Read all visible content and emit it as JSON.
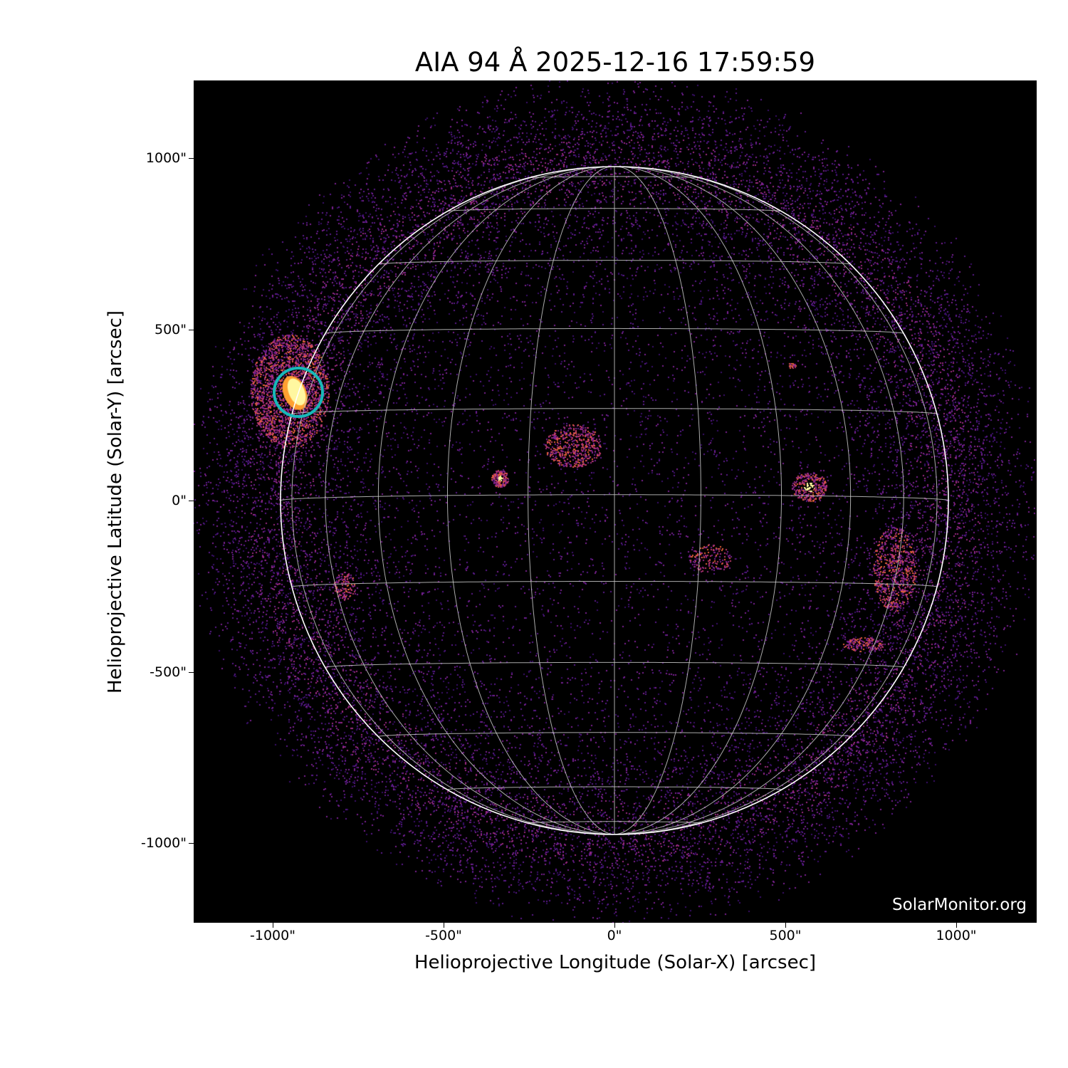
{
  "title": "AIA 94 Å 2025-12-16 17:59:59",
  "x_axis": {
    "label": "Helioprojective Longitude (Solar-X) [arcsec]",
    "ticks": [
      "-1000\"",
      "-500\"",
      "0\"",
      "500\"",
      "1000\""
    ],
    "tick_values": [
      -1000,
      -500,
      0,
      500,
      1000
    ]
  },
  "y_axis": {
    "label": "Helioprojective Latitude (Solar-Y) [arcsec]",
    "ticks": [
      "1000\"",
      "500\"",
      "0\"",
      "-500\"",
      "-1000\""
    ],
    "tick_values": [
      1000,
      500,
      0,
      -500,
      -1000
    ]
  },
  "watermark": "SolarMonitor.org",
  "colors": {
    "background": "#000000",
    "grid": "#c8c8c8",
    "limb": "#ffffff",
    "highlight_circle": "#17b8b8",
    "colormap_low": "#5a1a8a",
    "colormap_high": "#fff7a0"
  }
}
